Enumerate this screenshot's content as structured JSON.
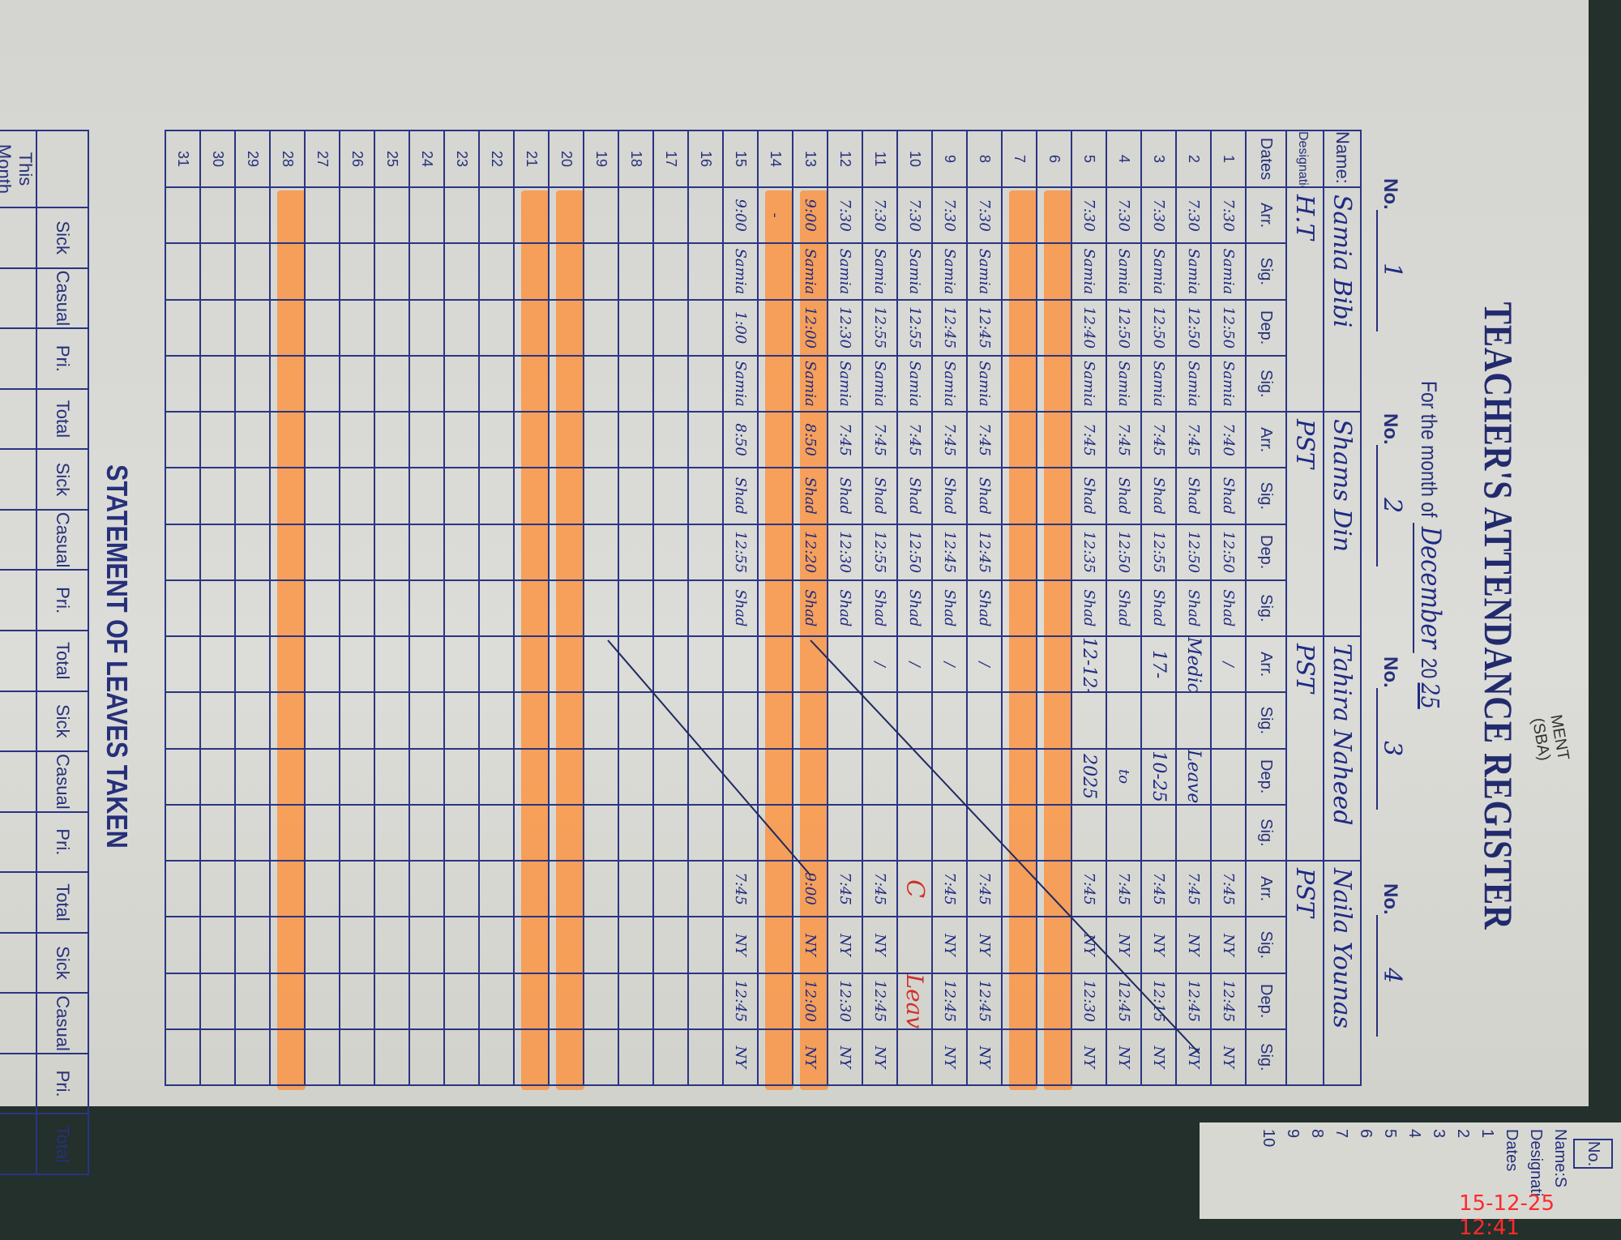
{
  "register": {
    "title": "TEACHER'S ATTENDANCE REGISTER",
    "month_prefix": "For the month of",
    "month": "December",
    "year_prefix": "20",
    "year_suffix": "25",
    "no_label": "No.",
    "name_label": "Name:",
    "designation_label": "Designation:",
    "dates_label": "Dates",
    "col_labels": [
      "Arr.",
      "Sig.",
      "Dep.",
      "Sig."
    ],
    "teachers": [
      {
        "no": "1",
        "name": "Samia Bibi",
        "designation": "H.T",
        "sig": "Samia"
      },
      {
        "no": "2",
        "name": "Shams Din",
        "designation": "PST",
        "sig": "Shad"
      },
      {
        "no": "3",
        "name": "Tahira Naheed",
        "designation": "PST",
        "sig": ""
      },
      {
        "no": "4",
        "name": "Naila Younas",
        "designation": "PST",
        "sig": "NY"
      }
    ],
    "highlight_color": "#ff8c32",
    "highlighted_dates": [
      6,
      7,
      13,
      14,
      20,
      21,
      28
    ],
    "rows": [
      {
        "date": "1",
        "t": [
          [
            "7:30",
            "12:50"
          ],
          [
            "7:40",
            "12:50"
          ],
          [
            "/",
            ""
          ],
          [
            "7:45",
            "12:45"
          ]
        ]
      },
      {
        "date": "2",
        "t": [
          [
            "7:30",
            "12:50"
          ],
          [
            "7:45",
            "12:50"
          ],
          [
            "Medical",
            "Leave"
          ],
          [
            "7:45",
            "12:45"
          ]
        ]
      },
      {
        "date": "3",
        "t": [
          [
            "7:30",
            "12:50"
          ],
          [
            "7:45",
            "12:55"
          ],
          [
            "17-",
            "10-25"
          ],
          [
            "7:45",
            "12:15"
          ]
        ]
      },
      {
        "date": "4",
        "t": [
          [
            "7:30",
            "12:50"
          ],
          [
            "7:45",
            "12:50"
          ],
          [
            "",
            "to"
          ],
          [
            "7:45",
            "12:45"
          ]
        ]
      },
      {
        "date": "5",
        "t": [
          [
            "7:30",
            "12:40"
          ],
          [
            "7:45",
            "12:35"
          ],
          [
            "12-12-",
            "2025"
          ],
          [
            "7:45",
            "12:30"
          ]
        ]
      },
      {
        "date": "6",
        "t": [
          [
            "",
            ""
          ],
          [
            "",
            ""
          ],
          [
            "",
            ""
          ],
          [
            "",
            ""
          ]
        ]
      },
      {
        "date": "7",
        "t": [
          [
            "",
            ""
          ],
          [
            "",
            ""
          ],
          [
            "",
            ""
          ],
          [
            "",
            ""
          ]
        ]
      },
      {
        "date": "8",
        "t": [
          [
            "7:30",
            "12:45"
          ],
          [
            "7:45",
            "12:45"
          ],
          [
            "/",
            ""
          ],
          [
            "7:45",
            "12:45"
          ]
        ]
      },
      {
        "date": "9",
        "t": [
          [
            "7:30",
            "12:45"
          ],
          [
            "7:45",
            "12:45"
          ],
          [
            "/",
            ""
          ],
          [
            "7:45",
            "12:45"
          ]
        ]
      },
      {
        "date": "10",
        "t": [
          [
            "7:30",
            "12:55"
          ],
          [
            "7:45",
            "12:50"
          ],
          [
            "/",
            ""
          ],
          [
            "C",
            "Leave"
          ]
        ]
      },
      {
        "date": "11",
        "t": [
          [
            "7:30",
            "12:55"
          ],
          [
            "7:45",
            "12:55"
          ],
          [
            "/",
            ""
          ],
          [
            "7:45",
            "12:45"
          ]
        ]
      },
      {
        "date": "12",
        "t": [
          [
            "7:30",
            "12:30"
          ],
          [
            "7:45",
            "12:30"
          ],
          [
            "",
            ""
          ],
          [
            "7:45",
            "12:30"
          ]
        ]
      },
      {
        "date": "13",
        "t": [
          [
            "9:00",
            "12:00"
          ],
          [
            "8:50",
            "12:20"
          ],
          [
            "",
            ""
          ],
          [
            "9:00",
            "12:00"
          ]
        ]
      },
      {
        "date": "14",
        "t": [
          [
            "-",
            ""
          ],
          [
            "",
            ""
          ],
          [
            "",
            ""
          ],
          [
            "",
            ""
          ]
        ]
      },
      {
        "date": "15",
        "t": [
          [
            "9:00",
            "1:00"
          ],
          [
            "8:50",
            "12:55"
          ],
          [
            "",
            ""
          ],
          [
            "7:45",
            "12:45"
          ]
        ]
      },
      {
        "date": "16",
        "t": [
          [
            "",
            ""
          ],
          [
            "",
            ""
          ],
          [
            "",
            ""
          ],
          [
            "",
            ""
          ]
        ]
      },
      {
        "date": "17",
        "t": [
          [
            "",
            ""
          ],
          [
            "",
            ""
          ],
          [
            "",
            ""
          ],
          [
            "",
            ""
          ]
        ]
      },
      {
        "date": "18",
        "t": [
          [
            "",
            ""
          ],
          [
            "",
            ""
          ],
          [
            "",
            ""
          ],
          [
            "",
            ""
          ]
        ]
      },
      {
        "date": "19",
        "t": [
          [
            "",
            ""
          ],
          [
            "",
            ""
          ],
          [
            "",
            ""
          ],
          [
            "",
            ""
          ]
        ]
      },
      {
        "date": "20",
        "t": [
          [
            "",
            ""
          ],
          [
            "",
            ""
          ],
          [
            "",
            ""
          ],
          [
            "",
            ""
          ]
        ]
      },
      {
        "date": "21",
        "t": [
          [
            "",
            ""
          ],
          [
            "",
            ""
          ],
          [
            "",
            ""
          ],
          [
            "",
            ""
          ]
        ]
      },
      {
        "date": "22",
        "t": [
          [
            "",
            ""
          ],
          [
            "",
            ""
          ],
          [
            "",
            ""
          ],
          [
            "",
            ""
          ]
        ]
      },
      {
        "date": "23",
        "t": [
          [
            "",
            ""
          ],
          [
            "",
            ""
          ],
          [
            "",
            ""
          ],
          [
            "",
            ""
          ]
        ]
      },
      {
        "date": "24",
        "t": [
          [
            "",
            ""
          ],
          [
            "",
            ""
          ],
          [
            "",
            ""
          ],
          [
            "",
            ""
          ]
        ]
      },
      {
        "date": "25",
        "t": [
          [
            "",
            ""
          ],
          [
            "",
            ""
          ],
          [
            "",
            ""
          ],
          [
            "",
            ""
          ]
        ]
      },
      {
        "date": "26",
        "t": [
          [
            "",
            ""
          ],
          [
            "",
            ""
          ],
          [
            "",
            ""
          ],
          [
            "",
            ""
          ]
        ]
      },
      {
        "date": "27",
        "t": [
          [
            "",
            ""
          ],
          [
            "",
            ""
          ],
          [
            "",
            ""
          ],
          [
            "",
            ""
          ]
        ]
      },
      {
        "date": "28",
        "t": [
          [
            "",
            ""
          ],
          [
            "",
            ""
          ],
          [
            "",
            ""
          ],
          [
            "",
            ""
          ]
        ]
      },
      {
        "date": "29",
        "t": [
          [
            "",
            ""
          ],
          [
            "",
            ""
          ],
          [
            "",
            ""
          ],
          [
            "",
            ""
          ]
        ]
      },
      {
        "date": "30",
        "t": [
          [
            "",
            ""
          ],
          [
            "",
            ""
          ],
          [
            "",
            ""
          ],
          [
            "",
            ""
          ]
        ]
      },
      {
        "date": "31",
        "t": [
          [
            "",
            ""
          ],
          [
            "",
            ""
          ],
          [
            "",
            ""
          ],
          [
            "",
            ""
          ]
        ]
      }
    ]
  },
  "leaves": {
    "title": "STATEMENT OF LEAVES TAKEN",
    "cols": [
      "Sick",
      "Casual",
      "Pri.",
      "Total"
    ],
    "this_month": "This Month"
  },
  "next_page": {
    "no_label": "No.",
    "name_label": "Name:S",
    "designation_label": "Designati",
    "dates_label": "Dates",
    "dates": [
      "1",
      "2",
      "3",
      "4",
      "5",
      "6",
      "7",
      "8",
      "9",
      "10"
    ]
  },
  "background_text": "MENT (SBA)",
  "timestamp": "15-12-25  12:41"
}
